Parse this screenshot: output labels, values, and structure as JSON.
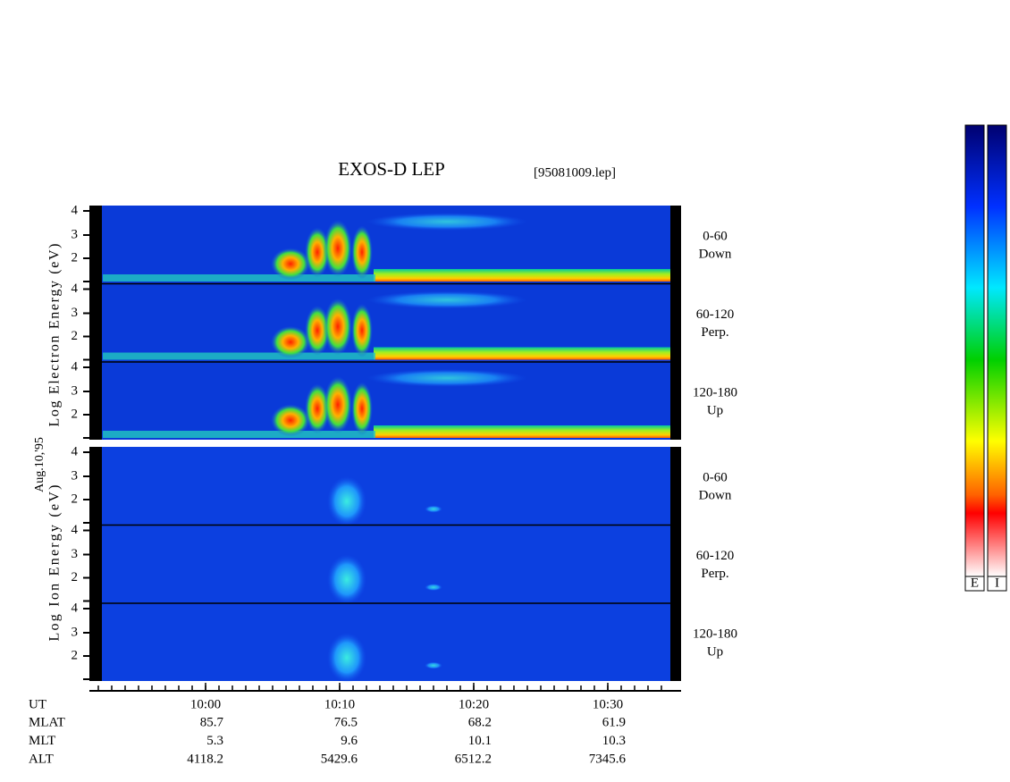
{
  "header": {
    "title": "EXOS-D LEP",
    "file": "[95081009.lep]"
  },
  "y_labels": {
    "date": "Aug.10,'95",
    "electron": "Log Electron Energy (eV)",
    "ion": "Log Ion Energy (eV)"
  },
  "panels": [
    {
      "group": "electron",
      "ticks": [
        "4",
        "3",
        "2"
      ],
      "range": "0-60",
      "direction": "Down"
    },
    {
      "group": "electron",
      "ticks": [
        "4",
        "3",
        "2"
      ],
      "range": "60-120",
      "direction": "Perp."
    },
    {
      "group": "electron",
      "ticks": [
        "4",
        "3",
        "2"
      ],
      "range": "120-180",
      "direction": "Up"
    },
    {
      "group": "ion",
      "ticks": [
        "4",
        "3",
        "2"
      ],
      "range": "0-60",
      "direction": "Down"
    },
    {
      "group": "ion",
      "ticks": [
        "4",
        "3",
        "2"
      ],
      "range": "60-120",
      "direction": "Perp."
    },
    {
      "group": "ion",
      "ticks": [
        "4",
        "3",
        "2"
      ],
      "range": "120-180",
      "direction": "Up"
    }
  ],
  "time_axis": {
    "rows": [
      {
        "label": "UT",
        "values": [
          "10:00",
          "10:10",
          "10:20",
          "10:30"
        ]
      },
      {
        "label": "MLAT",
        "values": [
          "85.7",
          "76.5",
          "68.2",
          "61.9"
        ]
      },
      {
        "label": "MLT",
        "values": [
          "5.3",
          "9.6",
          "10.1",
          "10.3"
        ]
      },
      {
        "label": "ALT",
        "values": [
          "4118.2",
          "5429.6",
          "6512.2",
          "7345.6"
        ]
      }
    ]
  },
  "colorbar": {
    "labels": [
      "E",
      "I"
    ]
  }
}
